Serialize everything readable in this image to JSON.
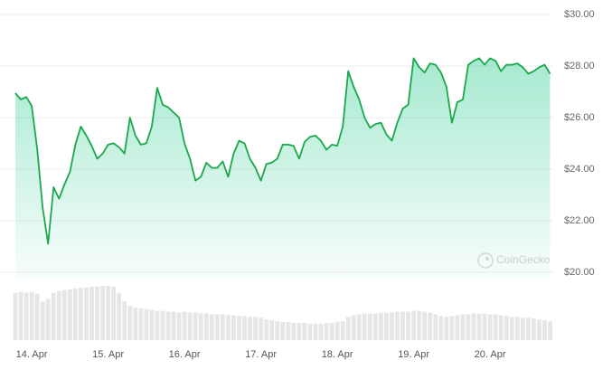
{
  "chart_data": [
    {
      "type": "line",
      "color": "#1aa84a",
      "area": true,
      "watermark": "CoinGecko",
      "categories": [
        null,
        null,
        null,
        "14. Apr",
        null,
        null,
        null,
        null,
        null,
        null,
        null,
        null,
        null,
        null,
        null,
        null,
        null,
        "15. Apr",
        null,
        null,
        null,
        null,
        null,
        null,
        null,
        null,
        null,
        null,
        null,
        null,
        null,
        "16. Apr",
        null,
        null,
        null,
        null,
        null,
        null,
        null,
        null,
        null,
        null,
        null,
        null,
        null,
        "17. Apr",
        null,
        null,
        null,
        null,
        null,
        null,
        null,
        null,
        null,
        null,
        null,
        null,
        null,
        "18. Apr",
        null,
        null,
        null,
        null,
        null,
        null,
        null,
        null,
        null,
        null,
        null,
        null,
        null,
        "19. Apr",
        null,
        null,
        null,
        null,
        null,
        null,
        null,
        null,
        null,
        null,
        null,
        null,
        null,
        "20. Apr",
        null,
        null,
        null,
        null,
        null,
        null,
        null,
        null,
        null,
        null,
        null
      ],
      "values": [
        26.95,
        26.7,
        26.8,
        26.45,
        24.8,
        22.5,
        21.1,
        23.3,
        22.85,
        23.4,
        23.9,
        24.95,
        25.65,
        25.3,
        24.9,
        24.4,
        24.6,
        24.95,
        25.0,
        24.85,
        24.6,
        26.0,
        25.3,
        24.95,
        25.0,
        25.65,
        27.15,
        26.5,
        26.4,
        26.2,
        26.0,
        25.0,
        24.4,
        23.55,
        23.7,
        24.25,
        24.05,
        24.05,
        24.3,
        23.7,
        24.6,
        25.1,
        25.0,
        24.4,
        24.05,
        23.55,
        24.2,
        24.25,
        24.4,
        24.95,
        24.95,
        24.9,
        24.4,
        25.05,
        25.25,
        25.3,
        25.1,
        24.75,
        24.95,
        24.9,
        25.65,
        27.8,
        27.2,
        26.7,
        26.0,
        25.6,
        25.75,
        25.8,
        25.35,
        25.1,
        25.8,
        26.35,
        26.5,
        28.3,
        27.95,
        27.75,
        28.1,
        28.05,
        27.75,
        27.2,
        25.8,
        26.6,
        26.7,
        28.05,
        28.2,
        28.3,
        28.05,
        28.3,
        28.2,
        27.8,
        28.05,
        28.05,
        28.1,
        27.95,
        27.7,
        27.8,
        27.95,
        28.05,
        27.7
      ],
      "ylim": [
        19.75,
        30
      ],
      "yticks": [
        {
          "value": 20,
          "label": "$20.00"
        },
        {
          "value": 22,
          "label": "$22.00"
        },
        {
          "value": 24,
          "label": "$24.00"
        },
        {
          "value": 26,
          "label": "$26.00"
        },
        {
          "value": 28,
          "label": "$28.00"
        },
        {
          "value": 30,
          "label": "$30.00"
        }
      ],
      "grid": true
    },
    {
      "type": "bar",
      "color": "#e6e6e6",
      "values": [
        55,
        56,
        55,
        56,
        54,
        45,
        48,
        55,
        57,
        58,
        59,
        60,
        61,
        61,
        62,
        62,
        63,
        63,
        62,
        55,
        45,
        40,
        38,
        37,
        36,
        35,
        34,
        34,
        33,
        33,
        32,
        33,
        32,
        32,
        31,
        31,
        30,
        30,
        30,
        29,
        29,
        28,
        28,
        27,
        27,
        26,
        24,
        23,
        22,
        21,
        21,
        20,
        20,
        20,
        19,
        19,
        19,
        20,
        20,
        21,
        22,
        27,
        29,
        30,
        31,
        31,
        31,
        32,
        32,
        32,
        33,
        33,
        33,
        34,
        34,
        33,
        32,
        30,
        28,
        27,
        28,
        29,
        30,
        30,
        31,
        31,
        31,
        30,
        30,
        29,
        28,
        27,
        27,
        26,
        26,
        25,
        24,
        23,
        22
      ]
    }
  ]
}
